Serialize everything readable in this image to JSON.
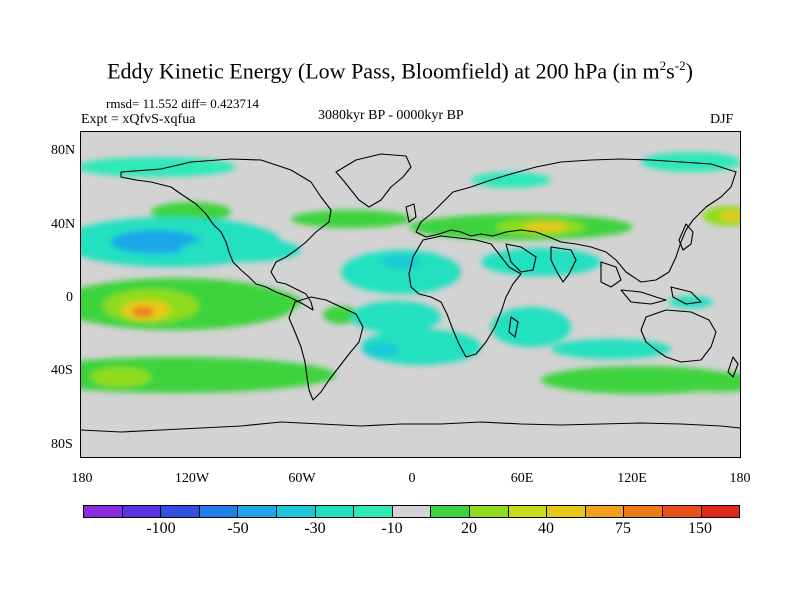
{
  "title": {
    "main": "Eddy Kinetic Energy (Low Pass, Bloomfield) at 200 hPa (in m",
    "sup1": "2",
    "mid": "s",
    "sup2": "-2",
    "end": ")"
  },
  "stats_line": "rmsd= 11.552 diff= 0.423714",
  "experiment_line": "Expt = xQfvS-xqfua",
  "period_line": "3080kyr BP - 0000kyr BP",
  "season": "DJF",
  "map": {
    "latitude_labels": [
      "80N",
      "40N",
      "0",
      "40S",
      "80S"
    ],
    "longitude_labels": [
      "180",
      "120W",
      "60W",
      "0",
      "60E",
      "120E",
      "180"
    ],
    "background_color": "#d3d3d3",
    "coastline_color": "#000000"
  },
  "colorbar": {
    "colors": [
      "#8a2be2",
      "#5b32e6",
      "#2f50e0",
      "#1f7fe6",
      "#1fa8e8",
      "#1fc8d8",
      "#20e0c0",
      "#2fe8b8",
      "#d3d3d3",
      "#3ed33e",
      "#8fdc1e",
      "#c8dc1a",
      "#e6c81a",
      "#f0a01a",
      "#f07a1a",
      "#e8501a",
      "#e0281a"
    ],
    "labels": [
      "-100",
      "-50",
      "-30",
      "-10",
      "20",
      "40",
      "75",
      "150"
    ]
  }
}
